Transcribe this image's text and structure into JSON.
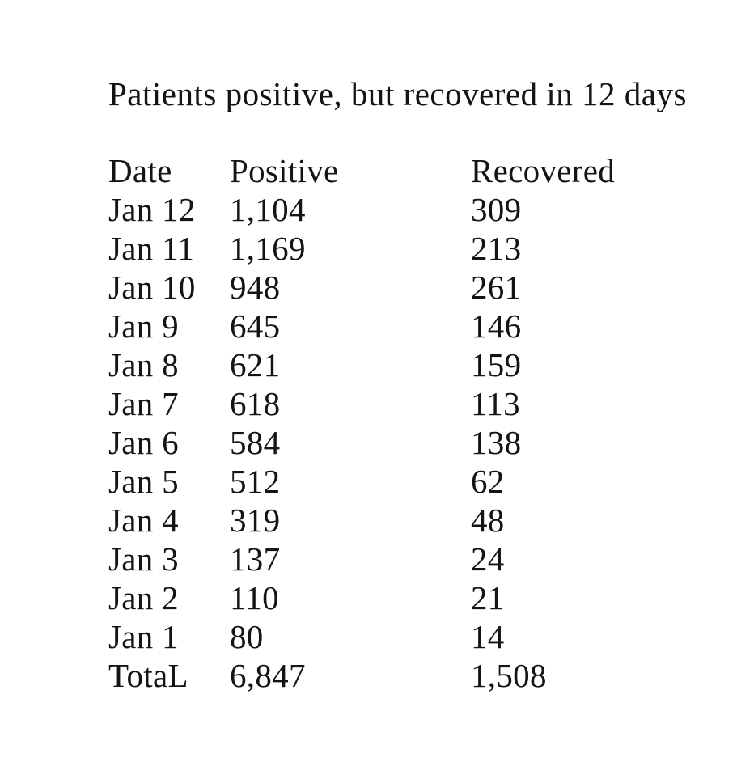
{
  "page": {
    "title": "Patients positive, but recovered in 12 days",
    "background_color": "#ffffff",
    "text_color": "#141414"
  },
  "table": {
    "headers": [
      "Date",
      "Positive",
      "Recovered"
    ],
    "rows": [
      {
        "date": "Jan 12",
        "positive": "1,104",
        "recovered": "309"
      },
      {
        "date": "Jan 11",
        "positive": "1,169",
        "recovered": "213"
      },
      {
        "date": "Jan 10",
        "positive": "948",
        "recovered": "261"
      },
      {
        "date": "Jan 9",
        "positive": "645",
        "recovered": "146"
      },
      {
        "date": "Jan 8",
        "positive": "621",
        "recovered": "159"
      },
      {
        "date": "Jan 7",
        "positive": "618",
        "recovered": "113"
      },
      {
        "date": "Jan 6",
        "positive": "584",
        "recovered": "138"
      },
      {
        "date": "Jan 5",
        "positive": "512",
        "recovered": "62"
      },
      {
        "date": "Jan 4",
        "positive": "319",
        "recovered": "48"
      },
      {
        "date": "Jan 3",
        "positive": "137",
        "recovered": "24"
      },
      {
        "date": "Jan 2",
        "positive": "110",
        "recovered": "21"
      },
      {
        "date": "Jan 1",
        "positive": "80",
        "recovered": "14"
      },
      {
        "date": "TotaL",
        "positive": "6,847",
        "recovered": "1,508"
      }
    ]
  }
}
